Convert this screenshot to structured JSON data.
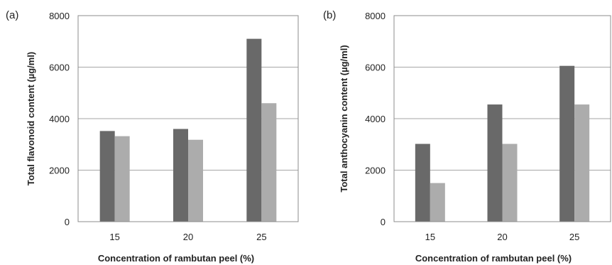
{
  "chart_data": [
    {
      "panel_label": "(a)",
      "type": "bar",
      "title": "",
      "xlabel": "Concentration of rambutan peel (%)",
      "ylabel": "Total flavonoid content (µg/ml)",
      "ylim": [
        0,
        8000
      ],
      "yticks": [
        0,
        2000,
        4000,
        6000,
        8000
      ],
      "grid": true,
      "legend": "none",
      "categories": [
        "15",
        "20",
        "25"
      ],
      "series": [
        {
          "values": [
            3520,
            3600,
            7100
          ],
          "color": "#696969"
        },
        {
          "values": [
            3320,
            3180,
            4600
          ],
          "color": "#acacac"
        }
      ]
    },
    {
      "panel_label": "(b)",
      "type": "bar",
      "title": "",
      "xlabel": "Concentration of rambutan peel (%)",
      "ylabel": "Total anthocyanin content (µg/ml)",
      "ylim": [
        0,
        8000
      ],
      "yticks": [
        0,
        2000,
        4000,
        6000,
        8000
      ],
      "grid": true,
      "legend": "none",
      "categories": [
        "15",
        "20",
        "25"
      ],
      "series": [
        {
          "values": [
            3020,
            4550,
            6050
          ],
          "color": "#696969"
        },
        {
          "values": [
            1500,
            3020,
            4550
          ],
          "color": "#acacac"
        }
      ]
    }
  ]
}
